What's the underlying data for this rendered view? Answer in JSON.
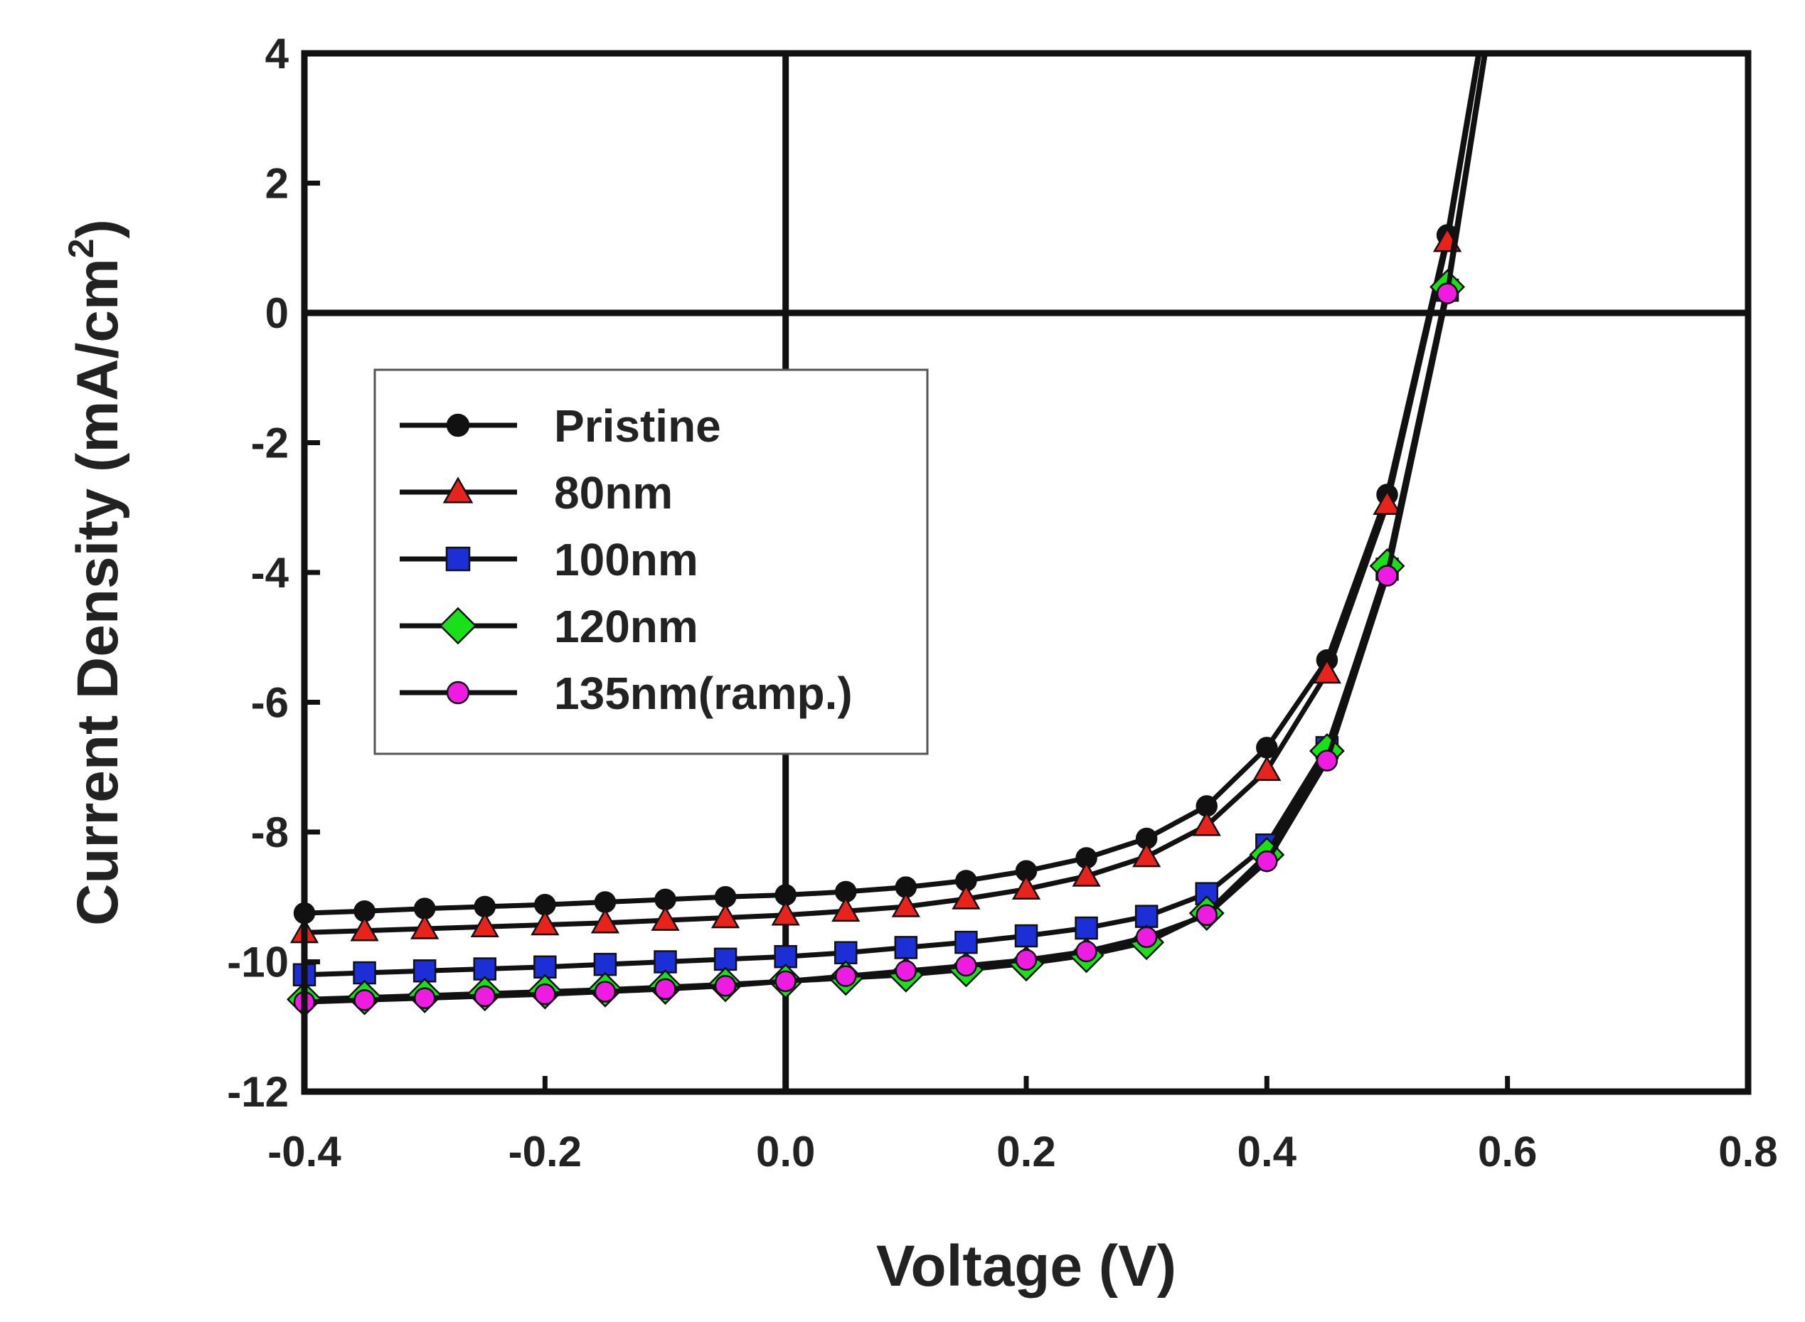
{
  "chart_data": {
    "type": "line",
    "title": "",
    "xlabel": "Voltage (V)",
    "ylabel": "Current Density (mA/cm",
    "ylabel_superscript": "2",
    "ylabel_close": ")",
    "xlim": [
      -0.4,
      0.8
    ],
    "ylim": [
      -12,
      4
    ],
    "xticks": [
      -0.4,
      -0.2,
      0.0,
      0.2,
      0.4,
      0.6,
      0.8
    ],
    "xtick_labels": [
      "-0.4",
      "-0.2",
      "0.0",
      "0.2",
      "0.4",
      "0.6",
      "0.8"
    ],
    "yticks": [
      4,
      2,
      0,
      -2,
      -4,
      -6,
      -8,
      -10,
      -12
    ],
    "ytick_labels": [
      "4",
      "2",
      "0",
      "-2",
      "-4",
      "-6",
      "-8",
      "-10",
      "-12"
    ],
    "zero_lines": true,
    "legend_position": "center-left",
    "x": [
      -0.4,
      -0.35,
      -0.3,
      -0.25,
      -0.2,
      -0.15,
      -0.1,
      -0.05,
      0.0,
      0.05,
      0.1,
      0.15,
      0.2,
      0.25,
      0.3,
      0.35,
      0.4,
      0.45,
      0.5,
      0.55
    ],
    "series": [
      {
        "name": "Pristine",
        "marker": "circle",
        "color": "#111111",
        "values": [
          -9.25,
          -9.22,
          -9.18,
          -9.15,
          -9.12,
          -9.08,
          -9.04,
          -9.0,
          -8.97,
          -8.92,
          -8.85,
          -8.75,
          -8.6,
          -8.4,
          -8.1,
          -7.6,
          -6.7,
          -5.35,
          -2.8,
          1.2
        ]
      },
      {
        "name": "80nm",
        "marker": "triangle",
        "color": "#e8231b",
        "values": [
          -9.55,
          -9.52,
          -9.49,
          -9.46,
          -9.43,
          -9.4,
          -9.36,
          -9.32,
          -9.28,
          -9.22,
          -9.15,
          -9.03,
          -8.88,
          -8.68,
          -8.38,
          -7.9,
          -7.05,
          -5.55,
          -2.95,
          1.1
        ]
      },
      {
        "name": "100nm",
        "marker": "square",
        "color": "#1c2fd6",
        "values": [
          -10.2,
          -10.17,
          -10.14,
          -10.11,
          -10.08,
          -10.04,
          -10.0,
          -9.96,
          -9.92,
          -9.86,
          -9.78,
          -9.7,
          -9.6,
          -9.48,
          -9.3,
          -8.95,
          -8.2,
          -6.7,
          -3.95,
          0.35
        ]
      },
      {
        "name": "120nm",
        "marker": "diamond",
        "color": "#19e019",
        "values": [
          -10.58,
          -10.55,
          -10.52,
          -10.49,
          -10.46,
          -10.43,
          -10.39,
          -10.35,
          -10.3,
          -10.25,
          -10.2,
          -10.12,
          -10.03,
          -9.9,
          -9.7,
          -9.25,
          -8.35,
          -6.75,
          -3.9,
          0.4
        ]
      },
      {
        "name": "135nm(ramp.)",
        "marker": "circle",
        "color": "#ee1ce0",
        "values": [
          -10.62,
          -10.59,
          -10.56,
          -10.53,
          -10.5,
          -10.46,
          -10.42,
          -10.37,
          -10.3,
          -10.22,
          -10.14,
          -10.06,
          -9.97,
          -9.84,
          -9.62,
          -9.28,
          -8.45,
          -6.9,
          -4.05,
          0.3
        ]
      }
    ]
  }
}
